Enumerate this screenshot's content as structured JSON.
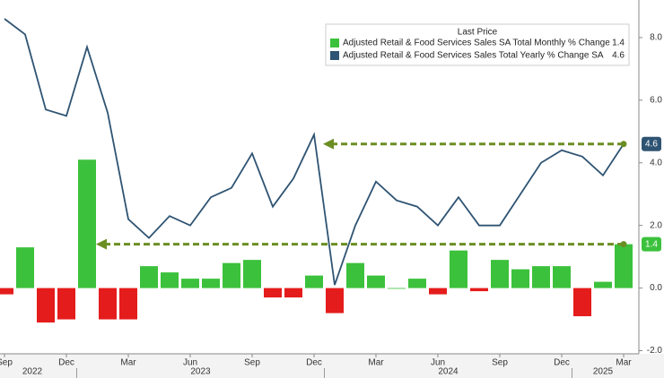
{
  "chart_data": {
    "type": "bar-line",
    "legend_title": "Last Price",
    "categories": [
      "Sep",
      null,
      null,
      "Dec",
      null,
      null,
      "Mar",
      null,
      null,
      "Jun",
      null,
      null,
      "Sep",
      null,
      null,
      "Dec",
      null,
      null,
      "Mar",
      null,
      null,
      "Jun",
      null,
      null,
      "Sep",
      null,
      null,
      "Dec",
      null,
      null,
      "Mar"
    ],
    "x_groups": [
      "2022",
      "2023",
      "2024",
      "2025"
    ],
    "series": [
      {
        "name": "Adjusted Retail & Food Services Sales SA Total Monthly % Change",
        "type": "bar",
        "color": "#3cc13c",
        "negative_color": "#e51c1c",
        "values": [
          -0.2,
          1.3,
          -1.1,
          -1.0,
          4.1,
          -1.0,
          -1.0,
          0.7,
          0.5,
          0.3,
          0.3,
          0.8,
          0.9,
          -0.3,
          -0.3,
          0.4,
          -0.8,
          0.8,
          0.4,
          0.0,
          0.3,
          -0.2,
          1.2,
          -0.1,
          0.9,
          0.6,
          0.7,
          0.7,
          -0.9,
          0.2,
          1.4
        ]
      },
      {
        "name": "Adjusted Retail & Food Services Sales Total Yearly % Change SA",
        "type": "line",
        "color": "#2f5473",
        "values": [
          8.6,
          8.1,
          5.7,
          5.5,
          7.7,
          5.6,
          2.2,
          1.6,
          2.3,
          2.0,
          2.9,
          3.2,
          4.3,
          2.6,
          3.5,
          4.9,
          0.1,
          2.0,
          3.4,
          2.8,
          2.6,
          2.0,
          2.9,
          2.0,
          2.0,
          3.0,
          4.0,
          4.4,
          4.2,
          3.6,
          4.6
        ]
      }
    ],
    "ylim": [
      -2.1,
      9.2
    ],
    "yticks": [
      {
        "value": -2,
        "label": "-2.0"
      },
      {
        "value": 0,
        "label": "0.0"
      },
      2,
      {
        "value": 2,
        "label": "2.0"
      },
      {
        "value": 4,
        "label": "4.0"
      },
      {
        "value": 6,
        "label": "6.0"
      },
      {
        "value": 8,
        "label": "8.0"
      }
    ],
    "arrow_color": "#6b8e23"
  }
}
